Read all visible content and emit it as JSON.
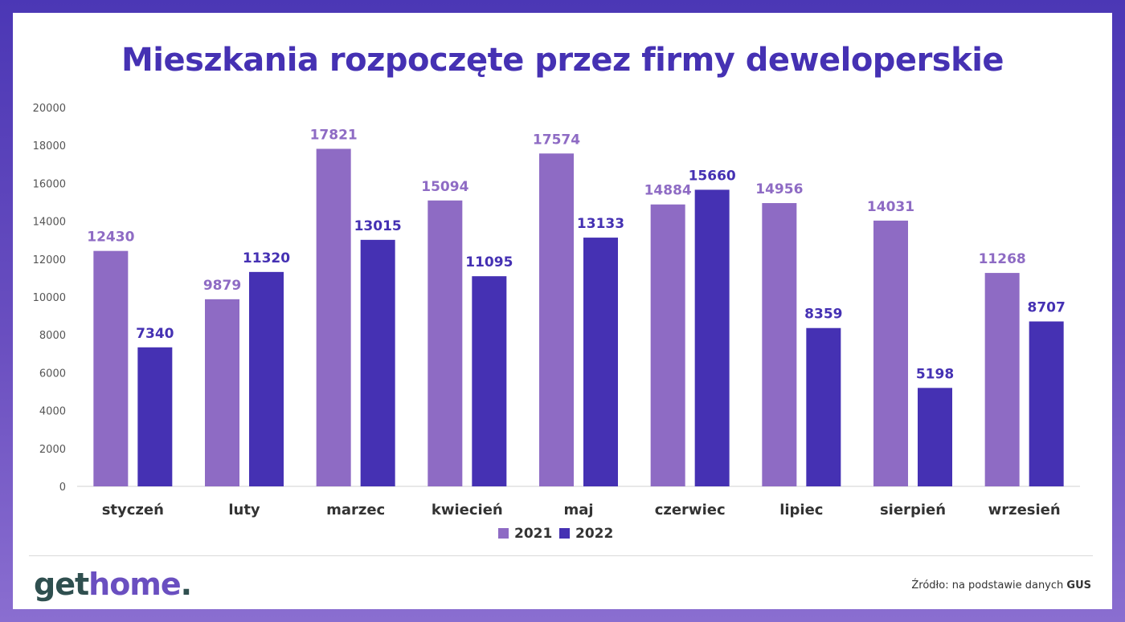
{
  "title": "Mieszkania rozpoczęte przez firmy deweloperskie",
  "colors": {
    "series_2021": "#8e6bc4",
    "series_2022": "#4531b3",
    "title": "#4531b3"
  },
  "logo": {
    "part1": "get",
    "part2": "home",
    "part3": "."
  },
  "source": {
    "prefix": "Źródło: na podstawie danych",
    "name": "GUS"
  },
  "chart_data": {
    "type": "bar",
    "title": "Mieszkania rozpoczęte przez firmy deweloperskie",
    "xlabel": "",
    "ylabel": "",
    "ylim": [
      0,
      20000
    ],
    "yticks": [
      0,
      2000,
      4000,
      6000,
      8000,
      10000,
      12000,
      14000,
      16000,
      18000,
      20000
    ],
    "grid": false,
    "legend": "bottom-center",
    "categories": [
      "styczeń",
      "luty",
      "marzec",
      "kwiecień",
      "maj",
      "czerwiec",
      "lipiec",
      "sierpień",
      "wrzesień"
    ],
    "series": [
      {
        "name": "2021",
        "color": "#8e6bc4",
        "values": [
          12430,
          9879,
          17821,
          15094,
          17574,
          14884,
          14956,
          14031,
          11268
        ]
      },
      {
        "name": "2022",
        "color": "#4531b3",
        "values": [
          7340,
          11320,
          13015,
          11095,
          13133,
          15660,
          8359,
          5198,
          8707
        ]
      }
    ]
  }
}
